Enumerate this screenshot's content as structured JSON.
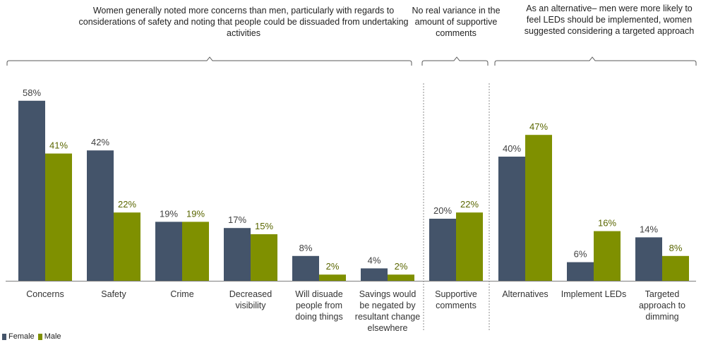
{
  "notes": [
    "Women generally noted more concerns than men, particularly with regards to considerations of safety and noting that people could be dissuaded from undertaking activities",
    "No real variance in the amount of supportive comments",
    "As an alternative– men were more likely to feel LEDs should be implemented, women suggested considering a targeted approach"
  ],
  "chart_data": {
    "type": "bar",
    "categories": [
      "Concerns",
      "Safety",
      "Crime",
      "Decreased visibility",
      "Will disuade people from doing things",
      "Savings would be negated by resultant change elsewhere",
      "Supportive comments",
      "Alternatives",
      "Implement LEDs",
      "Targeted approach to dimming"
    ],
    "series": [
      {
        "name": "Female",
        "color": "#44546a",
        "values": [
          58,
          42,
          19,
          17,
          8,
          4,
          20,
          40,
          6,
          14
        ]
      },
      {
        "name": "Male",
        "color": "#7f9000",
        "values": [
          41,
          22,
          19,
          15,
          2,
          2,
          22,
          47,
          16,
          8
        ]
      }
    ],
    "value_suffix": "%",
    "ylim": [
      0,
      60
    ],
    "grid": false,
    "legend_position": "bottom-left"
  }
}
